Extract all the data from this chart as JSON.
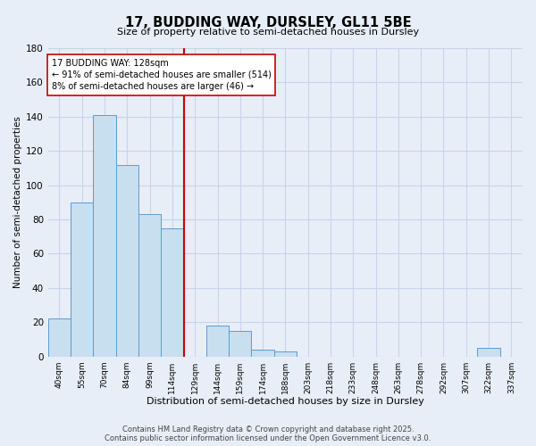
{
  "title": "17, BUDDING WAY, DURSLEY, GL11 5BE",
  "subtitle": "Size of property relative to semi-detached houses in Dursley",
  "xlabel": "Distribution of semi-detached houses by size in Dursley",
  "ylabel": "Number of semi-detached properties",
  "bin_labels": [
    "40sqm",
    "55sqm",
    "70sqm",
    "84sqm",
    "99sqm",
    "114sqm",
    "129sqm",
    "144sqm",
    "159sqm",
    "174sqm",
    "188sqm",
    "203sqm",
    "218sqm",
    "233sqm",
    "248sqm",
    "263sqm",
    "278sqm",
    "292sqm",
    "307sqm",
    "322sqm",
    "337sqm"
  ],
  "bar_values": [
    22,
    90,
    141,
    112,
    83,
    75,
    0,
    18,
    15,
    4,
    3,
    0,
    0,
    0,
    0,
    0,
    0,
    0,
    0,
    5,
    0
  ],
  "bar_color": "#c8dff0",
  "bar_edge_color": "#5b9bd5",
  "highlight_line_color": "#cc0000",
  "annotation_title": "17 BUDDING WAY: 128sqm",
  "annotation_line1": "← 91% of semi-detached houses are smaller (514)",
  "annotation_line2": "8% of semi-detached houses are larger (46) →",
  "annotation_box_color": "#ffffff",
  "annotation_box_edge": "#cc0000",
  "ylim": [
    0,
    180
  ],
  "yticks": [
    0,
    20,
    40,
    60,
    80,
    100,
    120,
    140,
    160,
    180
  ],
  "background_color": "#e8eef8",
  "grid_color": "#c8d4e8",
  "footer_line1": "Contains HM Land Registry data © Crown copyright and database right 2025.",
  "footer_line2": "Contains public sector information licensed under the Open Government Licence v3.0."
}
